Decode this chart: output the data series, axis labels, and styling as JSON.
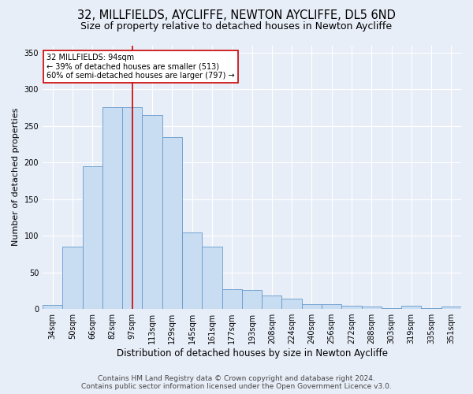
{
  "title_line1": "32, MILLFIELDS, AYCLIFFE, NEWTON AYCLIFFE, DL5 6ND",
  "title_line2": "Size of property relative to detached houses in Newton Aycliffe",
  "xlabel": "Distribution of detached houses by size in Newton Aycliffe",
  "ylabel": "Number of detached properties",
  "categories": [
    "34sqm",
    "50sqm",
    "66sqm",
    "82sqm",
    "97sqm",
    "113sqm",
    "129sqm",
    "145sqm",
    "161sqm",
    "177sqm",
    "193sqm",
    "208sqm",
    "224sqm",
    "240sqm",
    "256sqm",
    "272sqm",
    "288sqm",
    "303sqm",
    "319sqm",
    "335sqm",
    "351sqm"
  ],
  "values": [
    5,
    85,
    195,
    275,
    275,
    265,
    235,
    104,
    85,
    27,
    26,
    18,
    14,
    7,
    7,
    4,
    3,
    1,
    4,
    1,
    3
  ],
  "bar_color": "#c9ddf2",
  "bar_edge_color": "#6699cc",
  "vline_x": 4.0,
  "vline_color": "#cc0000",
  "annotation_text": "32 MILLFIELDS: 94sqm\n← 39% of detached houses are smaller (513)\n60% of semi-detached houses are larger (797) →",
  "annotation_box_color": "#ffffff",
  "annotation_box_edge": "#cc0000",
  "ylim": [
    0,
    360
  ],
  "yticks": [
    0,
    50,
    100,
    150,
    200,
    250,
    300,
    350
  ],
  "bg_color": "#e8eef8",
  "plot_bg_color": "#e8eef8",
  "footer_line1": "Contains HM Land Registry data © Crown copyright and database right 2024.",
  "footer_line2": "Contains public sector information licensed under the Open Government Licence v3.0.",
  "title_fontsize": 10.5,
  "subtitle_fontsize": 9,
  "ylabel_fontsize": 8,
  "xlabel_fontsize": 8.5,
  "tick_fontsize": 7,
  "annotation_fontsize": 7,
  "footer_fontsize": 6.5
}
